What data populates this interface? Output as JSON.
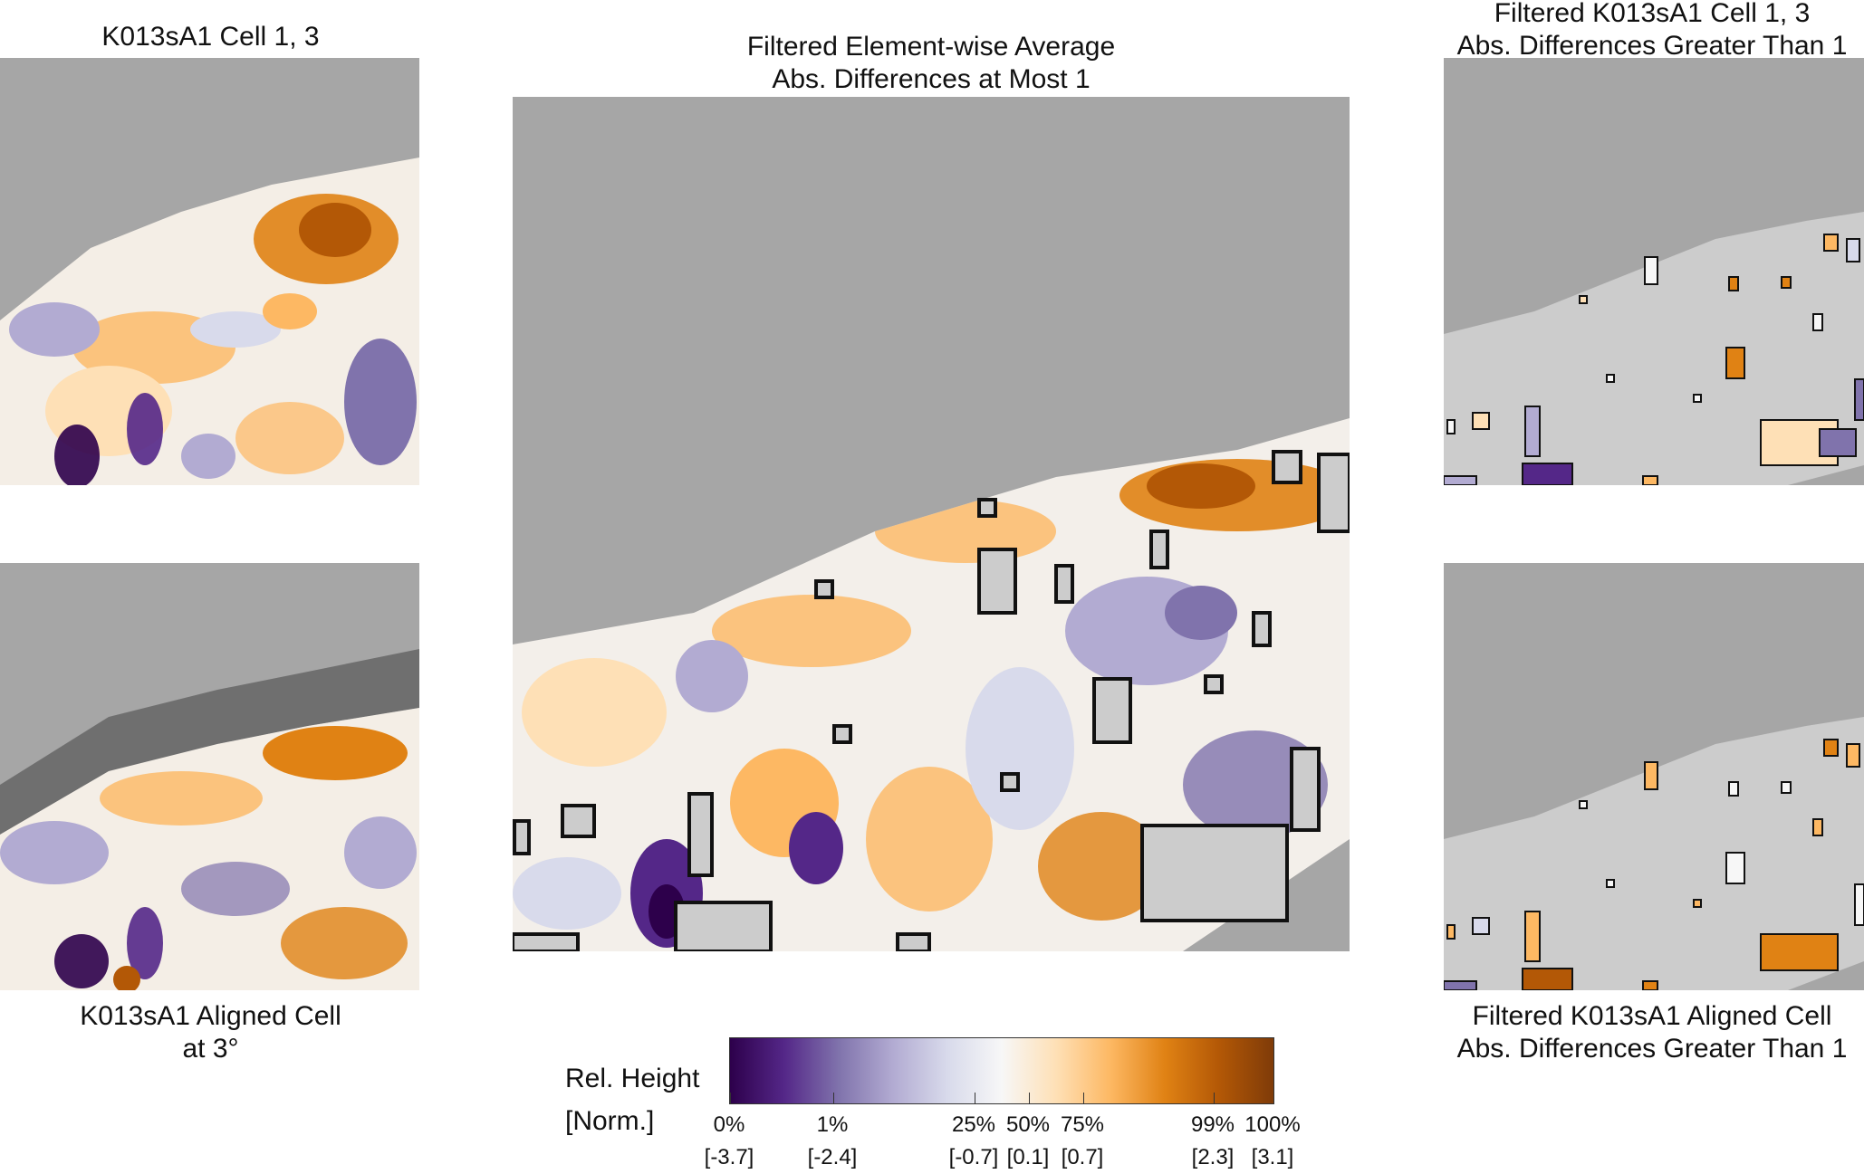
{
  "panels": {
    "top_left": {
      "title": [
        "K013sA1 Cell 1, 3"
      ]
    },
    "bottom_left": {
      "title": [
        "K013sA1 Aligned Cell",
        "at 3°"
      ]
    },
    "center": {
      "title": [
        "Filtered Element-wise Average",
        "Abs. Differences at Most 1"
      ]
    },
    "top_right": {
      "title": [
        "Filtered K013sA1 Cell 1, 3",
        "Abs. Differences Greater Than 1"
      ]
    },
    "bottom_right": {
      "title": [
        "Filtered K013sA1 Aligned Cell",
        "Abs. Differences Greater Than 1"
      ]
    }
  },
  "colorbar": {
    "label_line1": "Rel. Height",
    "label_line2": "[Norm.]",
    "ticks": [
      {
        "percent": "0%",
        "value": "[-3.7]",
        "position": 0.0
      },
      {
        "percent": "1%",
        "value": "[-2.4]",
        "position": 0.19
      },
      {
        "percent": "25%",
        "value": "[-0.7]",
        "position": 0.45
      },
      {
        "percent": "50%",
        "value": "[0.1]",
        "position": 0.55
      },
      {
        "percent": "75%",
        "value": "[0.7]",
        "position": 0.65
      },
      {
        "percent": "99%",
        "value": "[2.3]",
        "position": 0.89
      },
      {
        "percent": "100%",
        "value": "[3.1]",
        "position": 1.0
      }
    ],
    "colors": [
      "#2d004b",
      "#542788",
      "#8073ac",
      "#b2abd2",
      "#d8daeb",
      "#f7f7f7",
      "#fee0b6",
      "#fdb863",
      "#e08214",
      "#b35806",
      "#7f3b08"
    ]
  },
  "colors": {
    "missing_gray": "#a6a6a6",
    "filtered_gray": "#cccccc",
    "outline": "#111111"
  }
}
